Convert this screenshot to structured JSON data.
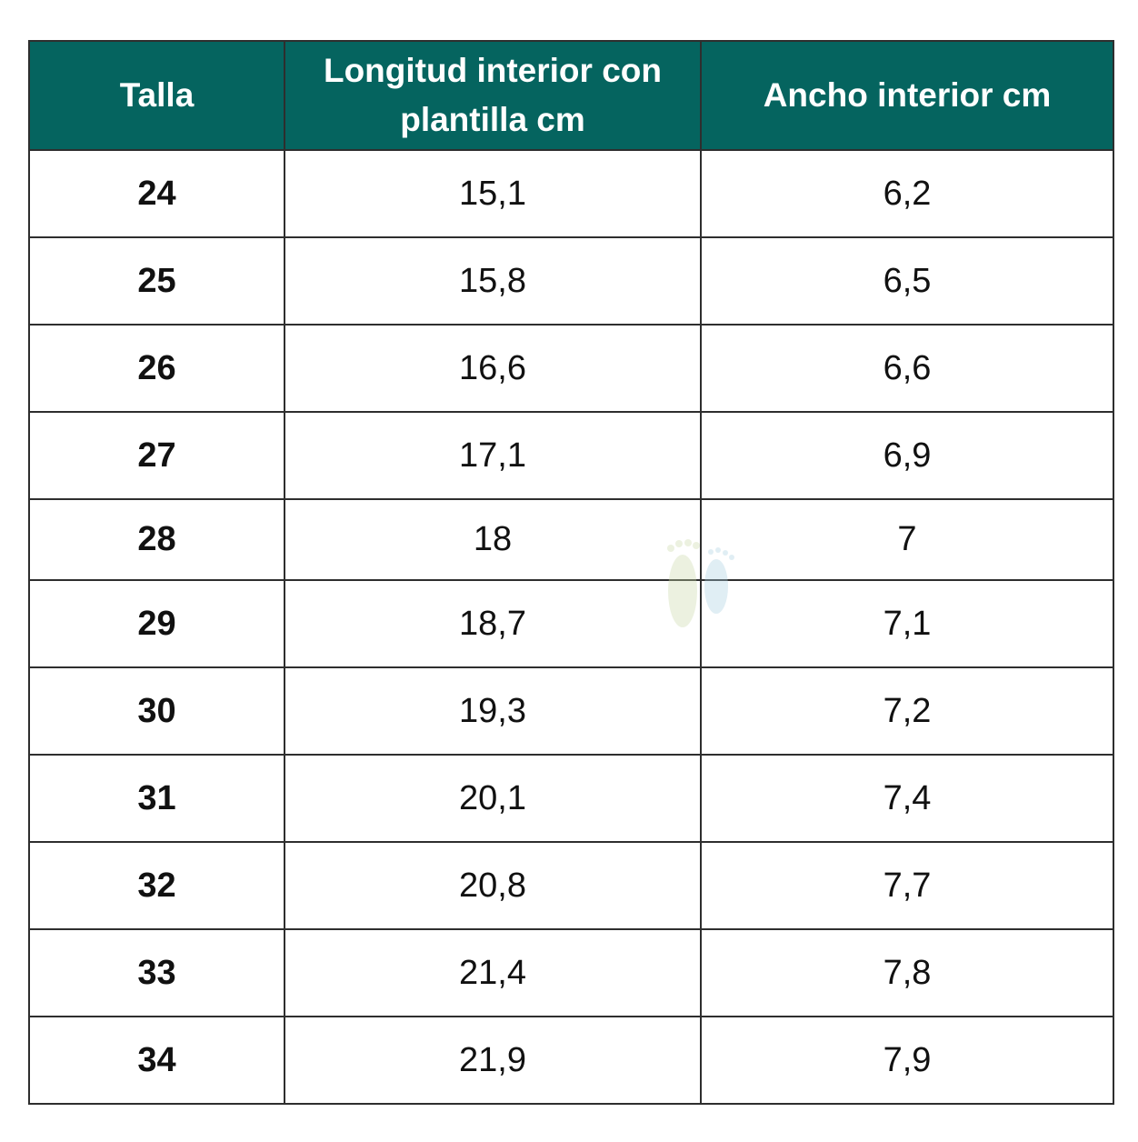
{
  "table": {
    "header": [
      "Talla",
      "Longitud interior con plantilla cm",
      "Ancho interior cm"
    ],
    "rows": [
      [
        "24",
        "15,1",
        "6,2"
      ],
      [
        "25",
        "15,8",
        "6,5"
      ],
      [
        "26",
        "16,6",
        "6,6"
      ],
      [
        "27",
        "17,1",
        "6,9"
      ],
      [
        "28",
        "18",
        "7"
      ],
      [
        "29",
        "18,7",
        "7,1"
      ],
      [
        "30",
        "19,3",
        "7,2"
      ],
      [
        "31",
        "20,1",
        "7,4"
      ],
      [
        "32",
        "20,8",
        "7,7"
      ],
      [
        "33",
        "21,4",
        "7,8"
      ],
      [
        "34",
        "21,9",
        "7,9"
      ]
    ]
  }
}
